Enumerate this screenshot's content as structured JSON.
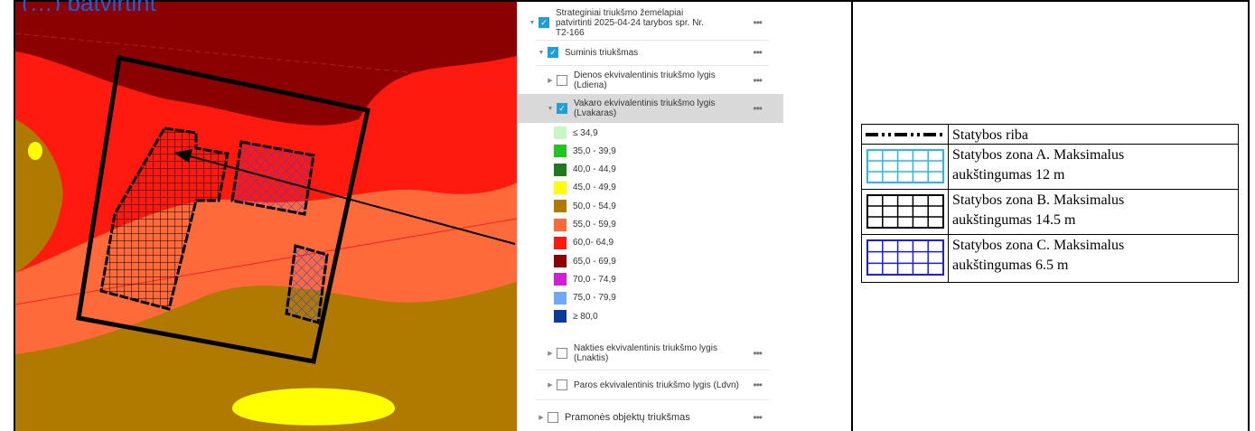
{
  "top_link_text": "(…) patvirtint",
  "layer_panel": {
    "rows": [
      {
        "label": "Strateginiai triukšmo žemėlapiai patvirtinti 2025-04-24 tarybos spr. Nr. T2-166",
        "checked": true
      },
      {
        "label": "Suminis triukšmas",
        "checked": true
      },
      {
        "label": "Dienos ekvivalentinis triukšmo lygis (Ldiena)",
        "checked": false
      },
      {
        "label": "Vakaro ekvivalentinis triukšmo lygis (Lvakaras)",
        "checked": true
      },
      {
        "label": "Nakties ekvivalentinis triukšmo lygis (Lnaktis)",
        "checked": false
      },
      {
        "label": "Paros ekvivalentinis triukšmo lygis (Ldvn)",
        "checked": false
      },
      {
        "label": "Pramonės objektų triukšmas",
        "checked": false
      }
    ],
    "more_label": "•••",
    "legend": [
      {
        "label": "≤ 34,9",
        "color": "#c8f7c5"
      },
      {
        "label": "35,0 - 39,9",
        "color": "#22c422"
      },
      {
        "label": "40,0 - 44,9",
        "color": "#1f7a1f"
      },
      {
        "label": "45,0 - 49,9",
        "color": "#ffff00"
      },
      {
        "label": "50,0 - 54,9",
        "color": "#b07a00"
      },
      {
        "label": "55,0 - 59,9",
        "color": "#ff6a3a"
      },
      {
        "label": "60,0- 64,9",
        "color": "#ff1a10"
      },
      {
        "label": "65,0 - 69,9",
        "color": "#8b0000"
      },
      {
        "label": "70,0 - 74,9",
        "color": "#d21dd2"
      },
      {
        "label": "75,0 - 79,9",
        "color": "#6fa8f5"
      },
      {
        "label": "≥ 80,0",
        "color": "#0a3a9b"
      }
    ]
  },
  "plan_legend": {
    "rows": [
      {
        "lines": [
          "Statybos riba"
        ]
      },
      {
        "lines": [
          "Statybos zona A. Maksimalus",
          "aukštingumas 12 m"
        ],
        "grid_color": "#29b6f6"
      },
      {
        "lines": [
          "Statybos zona B. Maksimalus",
          "aukštingumas 14.5 m"
        ],
        "grid_color": "#000000"
      },
      {
        "lines": [
          "Statybos zona C. Maksimalus",
          "aukštingumas 6.5 m"
        ],
        "grid_color": "#1a1aff"
      }
    ]
  }
}
